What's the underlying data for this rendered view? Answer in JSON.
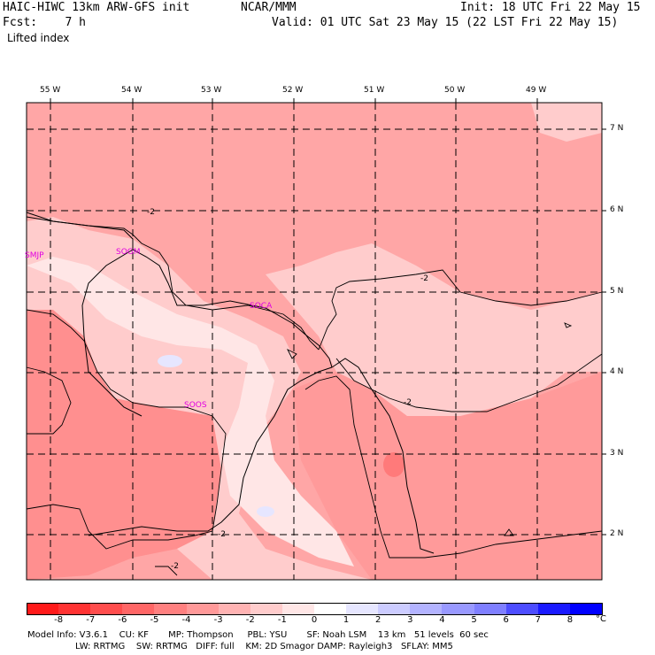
{
  "header": {
    "model_title": "HAIC-HIWC 13km ARW-GFS init",
    "org": "NCAR/MMM",
    "init": "Init: 18 UTC Fri 22 May 15",
    "fcst": "Fcst:    7 h",
    "valid": "Valid: 01 UTC Sat 23 May 15 (22 LST Fri 22 May 15)",
    "field": "Lifted index"
  },
  "map": {
    "lon_labels": [
      "55 W",
      "54 W",
      "53 W",
      "52 W",
      "51 W",
      "50 W",
      "49 W"
    ],
    "lat_labels": [
      "7 N",
      "6 N",
      "5 N",
      "4 N",
      "3 N",
      "2 N"
    ],
    "stations": [
      "SMJP",
      "SOGM",
      "SOCA",
      "SOOS"
    ],
    "contour_labels": [
      "-2",
      "-2",
      "-2",
      "-2",
      "-2"
    ]
  },
  "colorbar": {
    "ticks": [
      "-8",
      "-7",
      "-6",
      "-5",
      "-4",
      "-3",
      "-2",
      "-1",
      "0",
      "1",
      "2",
      "3",
      "4",
      "5",
      "6",
      "7",
      "8"
    ],
    "unit": "°C",
    "colors": [
      "#ff1a1a",
      "#ff3333",
      "#ff4d4d",
      "#ff6666",
      "#ff8080",
      "#ff9999",
      "#ffb3b3",
      "#ffcccc",
      "#ffe6e6",
      "#ffffff",
      "#e6e6ff",
      "#ccccff",
      "#b3b3ff",
      "#9999ff",
      "#7f7fff",
      "#4d4dff",
      "#1a1aff",
      "#0000ff"
    ]
  },
  "footer": {
    "line1": "Model Info: V3.6.1    CU: KF       MP: Thompson     PBL: YSU       SF: Noah LSM    13 km   51 levels  60 sec",
    "line2": "                 LW: RRTMG    SW: RRTMG   DIFF: full    KM: 2D Smagor DAMP: Rayleigh3   SFLAY: MM5"
  }
}
